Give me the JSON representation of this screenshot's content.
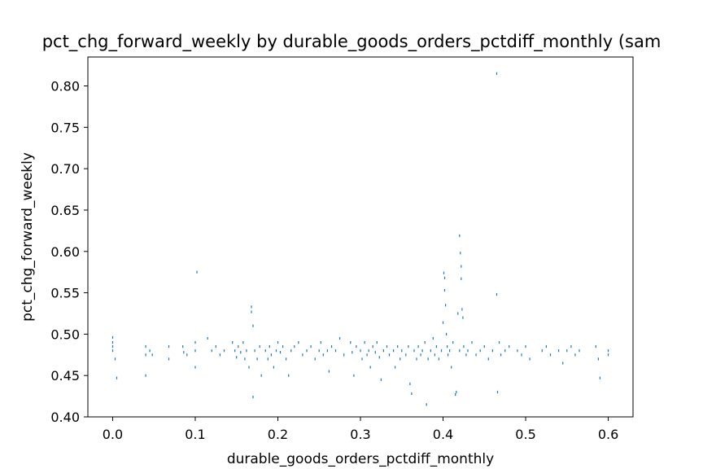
{
  "chart_data": {
    "type": "scatter",
    "title": "pct_chg_forward_weekly by durable_goods_orders_pctdiff_monthly (sam",
    "xlabel": "durable_goods_orders_pctdiff_monthly",
    "ylabel": "pct_chg_forward_weekly",
    "xlim": [
      -0.03,
      0.63
    ],
    "ylim": [
      0.4,
      0.835
    ],
    "x_ticks": [
      0.0,
      0.1,
      0.2,
      0.3,
      0.4,
      0.5,
      0.6
    ],
    "x_tick_labels": [
      "0.0",
      "0.1",
      "0.2",
      "0.3",
      "0.4",
      "0.5",
      "0.6"
    ],
    "y_ticks": [
      0.4,
      0.45,
      0.5,
      0.55,
      0.6,
      0.65,
      0.7,
      0.75,
      0.8
    ],
    "y_tick_labels": [
      "0.40",
      "0.45",
      "0.50",
      "0.55",
      "0.60",
      "0.65",
      "0.70",
      "0.75",
      "0.80"
    ],
    "grid": false,
    "marker_color": "#1f77b4",
    "points": [
      [
        0.0,
        0.496
      ],
      [
        0.0,
        0.49
      ],
      [
        0.0,
        0.485
      ],
      [
        0.0,
        0.48
      ],
      [
        0.003,
        0.47
      ],
      [
        0.005,
        0.447
      ],
      [
        0.04,
        0.485
      ],
      [
        0.04,
        0.475
      ],
      [
        0.04,
        0.45
      ],
      [
        0.045,
        0.48
      ],
      [
        0.048,
        0.475
      ],
      [
        0.068,
        0.485
      ],
      [
        0.068,
        0.47
      ],
      [
        0.085,
        0.485
      ],
      [
        0.086,
        0.478
      ],
      [
        0.09,
        0.475
      ],
      [
        0.1,
        0.49
      ],
      [
        0.1,
        0.48
      ],
      [
        0.1,
        0.46
      ],
      [
        0.102,
        0.575
      ],
      [
        0.115,
        0.495
      ],
      [
        0.12,
        0.48
      ],
      [
        0.125,
        0.485
      ],
      [
        0.13,
        0.475
      ],
      [
        0.135,
        0.48
      ],
      [
        0.145,
        0.49
      ],
      [
        0.148,
        0.48
      ],
      [
        0.15,
        0.472
      ],
      [
        0.152,
        0.485
      ],
      [
        0.155,
        0.478
      ],
      [
        0.158,
        0.49
      ],
      [
        0.16,
        0.47
      ],
      [
        0.162,
        0.48
      ],
      [
        0.165,
        0.46
      ],
      [
        0.168,
        0.533
      ],
      [
        0.168,
        0.527
      ],
      [
        0.17,
        0.51
      ],
      [
        0.17,
        0.424
      ],
      [
        0.172,
        0.48
      ],
      [
        0.175,
        0.47
      ],
      [
        0.178,
        0.485
      ],
      [
        0.18,
        0.45
      ],
      [
        0.185,
        0.48
      ],
      [
        0.188,
        0.47
      ],
      [
        0.19,
        0.485
      ],
      [
        0.192,
        0.475
      ],
      [
        0.195,
        0.46
      ],
      [
        0.198,
        0.48
      ],
      [
        0.2,
        0.49
      ],
      [
        0.203,
        0.478
      ],
      [
        0.206,
        0.485
      ],
      [
        0.21,
        0.47
      ],
      [
        0.213,
        0.45
      ],
      [
        0.216,
        0.48
      ],
      [
        0.22,
        0.485
      ],
      [
        0.225,
        0.49
      ],
      [
        0.23,
        0.475
      ],
      [
        0.235,
        0.48
      ],
      [
        0.24,
        0.485
      ],
      [
        0.245,
        0.47
      ],
      [
        0.25,
        0.48
      ],
      [
        0.252,
        0.49
      ],
      [
        0.255,
        0.475
      ],
      [
        0.26,
        0.48
      ],
      [
        0.262,
        0.455
      ],
      [
        0.265,
        0.485
      ],
      [
        0.27,
        0.48
      ],
      [
        0.275,
        0.495
      ],
      [
        0.28,
        0.475
      ],
      [
        0.288,
        0.49
      ],
      [
        0.29,
        0.478
      ],
      [
        0.292,
        0.45
      ],
      [
        0.295,
        0.485
      ],
      [
        0.3,
        0.48
      ],
      [
        0.302,
        0.47
      ],
      [
        0.305,
        0.49
      ],
      [
        0.308,
        0.475
      ],
      [
        0.31,
        0.48
      ],
      [
        0.312,
        0.46
      ],
      [
        0.315,
        0.485
      ],
      [
        0.318,
        0.478
      ],
      [
        0.32,
        0.49
      ],
      [
        0.323,
        0.472
      ],
      [
        0.325,
        0.445
      ],
      [
        0.328,
        0.48
      ],
      [
        0.332,
        0.485
      ],
      [
        0.335,
        0.475
      ],
      [
        0.34,
        0.48
      ],
      [
        0.342,
        0.46
      ],
      [
        0.345,
        0.485
      ],
      [
        0.348,
        0.47
      ],
      [
        0.35,
        0.48
      ],
      [
        0.355,
        0.475
      ],
      [
        0.358,
        0.485
      ],
      [
        0.36,
        0.44
      ],
      [
        0.362,
        0.428
      ],
      [
        0.365,
        0.48
      ],
      [
        0.368,
        0.47
      ],
      [
        0.37,
        0.485
      ],
      [
        0.373,
        0.475
      ],
      [
        0.375,
        0.48
      ],
      [
        0.378,
        0.49
      ],
      [
        0.38,
        0.415
      ],
      [
        0.382,
        0.47
      ],
      [
        0.385,
        0.48
      ],
      [
        0.388,
        0.495
      ],
      [
        0.39,
        0.475
      ],
      [
        0.392,
        0.485
      ],
      [
        0.395,
        0.47
      ],
      [
        0.398,
        0.48
      ],
      [
        0.4,
        0.514
      ],
      [
        0.401,
        0.574
      ],
      [
        0.402,
        0.568
      ],
      [
        0.402,
        0.553
      ],
      [
        0.403,
        0.535
      ],
      [
        0.404,
        0.5
      ],
      [
        0.405,
        0.485
      ],
      [
        0.406,
        0.475
      ],
      [
        0.408,
        0.48
      ],
      [
        0.41,
        0.46
      ],
      [
        0.412,
        0.49
      ],
      [
        0.415,
        0.427
      ],
      [
        0.416,
        0.43
      ],
      [
        0.418,
        0.525
      ],
      [
        0.42,
        0.48
      ],
      [
        0.42,
        0.619
      ],
      [
        0.421,
        0.598
      ],
      [
        0.422,
        0.582
      ],
      [
        0.422,
        0.567
      ],
      [
        0.423,
        0.53
      ],
      [
        0.424,
        0.52
      ],
      [
        0.425,
        0.485
      ],
      [
        0.428,
        0.475
      ],
      [
        0.43,
        0.48
      ],
      [
        0.435,
        0.49
      ],
      [
        0.44,
        0.475
      ],
      [
        0.445,
        0.48
      ],
      [
        0.45,
        0.485
      ],
      [
        0.455,
        0.47
      ],
      [
        0.46,
        0.48
      ],
      [
        0.465,
        0.815
      ],
      [
        0.465,
        0.548
      ],
      [
        0.466,
        0.43
      ],
      [
        0.468,
        0.49
      ],
      [
        0.47,
        0.475
      ],
      [
        0.475,
        0.48
      ],
      [
        0.48,
        0.485
      ],
      [
        0.49,
        0.48
      ],
      [
        0.495,
        0.475
      ],
      [
        0.5,
        0.485
      ],
      [
        0.505,
        0.47
      ],
      [
        0.52,
        0.48
      ],
      [
        0.525,
        0.485
      ],
      [
        0.53,
        0.475
      ],
      [
        0.54,
        0.48
      ],
      [
        0.545,
        0.465
      ],
      [
        0.55,
        0.48
      ],
      [
        0.555,
        0.485
      ],
      [
        0.56,
        0.475
      ],
      [
        0.565,
        0.48
      ],
      [
        0.585,
        0.485
      ],
      [
        0.588,
        0.47
      ],
      [
        0.59,
        0.447
      ],
      [
        0.6,
        0.48
      ],
      [
        0.6,
        0.475
      ]
    ]
  }
}
